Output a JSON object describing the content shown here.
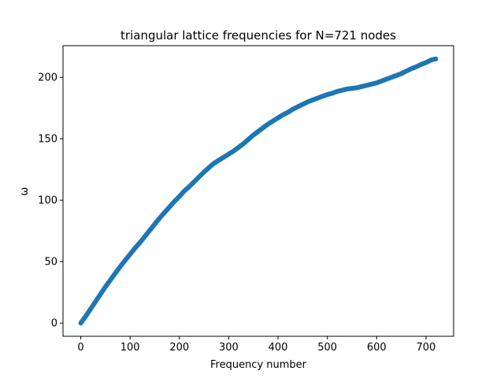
{
  "chart_data": {
    "type": "scatter",
    "title": "triangular lattice frequencies for N=721 nodes",
    "xlabel": "Frequency number",
    "ylabel": "ω",
    "xlim": [
      -36,
      756
    ],
    "ylim": [
      -10.75,
      225.75
    ],
    "xticks": [
      0,
      100,
      200,
      300,
      400,
      500,
      600,
      700
    ],
    "yticks": [
      0,
      50,
      100,
      150,
      200
    ],
    "grid": false,
    "legend": "none",
    "series": [
      {
        "color": "#1f77b4",
        "points_count": 721,
        "x": [
          0,
          10,
          20,
          30,
          40,
          50,
          60,
          70,
          80,
          90,
          100,
          110,
          120,
          130,
          140,
          150,
          160,
          170,
          180,
          190,
          200,
          210,
          220,
          230,
          240,
          250,
          260,
          270,
          280,
          290,
          300,
          310,
          320,
          330,
          340,
          350,
          360,
          370,
          380,
          390,
          400,
          410,
          420,
          430,
          440,
          450,
          460,
          470,
          480,
          490,
          500,
          510,
          520,
          530,
          540,
          550,
          560,
          570,
          580,
          590,
          600,
          610,
          620,
          630,
          640,
          650,
          660,
          670,
          680,
          690,
          700,
          710,
          720
        ],
        "y": [
          0,
          5.5,
          11.5,
          17.5,
          23.5,
          29.5,
          35,
          40.5,
          46,
          51,
          56,
          61,
          65.5,
          70.5,
          75.5,
          80.5,
          85.5,
          90,
          94.5,
          99,
          103,
          107.5,
          111,
          115,
          119,
          123,
          126.5,
          130,
          132.5,
          135,
          137.5,
          140,
          143,
          146,
          149.5,
          153,
          156,
          159,
          162,
          164.5,
          167,
          169.5,
          171.5,
          174,
          176,
          178,
          180,
          181.5,
          183,
          184.5,
          186,
          187,
          188.5,
          189.5,
          190.5,
          191,
          191.5,
          192.5,
          193.5,
          194.5,
          195.5,
          197,
          198.5,
          200,
          201.5,
          203,
          205,
          207,
          208.5,
          210.5,
          212,
          214,
          215
        ]
      }
    ]
  }
}
